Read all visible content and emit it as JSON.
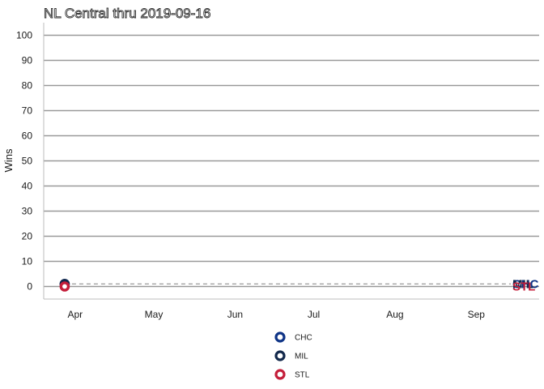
{
  "chart_data": {
    "type": "line",
    "title": "NL Central thru 2019-09-16",
    "xlabel": "",
    "ylabel": "Wins",
    "x_ticks": [
      "Apr",
      "May",
      "Jun",
      "Jul",
      "Aug",
      "Sep"
    ],
    "x_range": [
      "2019-03-20",
      "2019-09-25"
    ],
    "y_ticks": [
      0,
      10,
      20,
      30,
      40,
      50,
      60,
      70,
      80,
      90,
      100
    ],
    "ylim": [
      -5,
      105
    ],
    "grid": "horizontal",
    "legend_position": "bottom",
    "reference_line": 1,
    "series": [
      {
        "name": "CHC",
        "color": "#0E3386",
        "x": [
          "2019-03-28"
        ],
        "y": [
          1
        ],
        "end_label": "CHC",
        "end_value": 1
      },
      {
        "name": "MIL",
        "color": "#12284B",
        "x": [
          "2019-03-28"
        ],
        "y": [
          1
        ],
        "end_label": "MIL",
        "end_value": 1
      },
      {
        "name": "STL",
        "color": "#C41E3A",
        "x": [
          "2019-03-28"
        ],
        "y": [
          0
        ],
        "end_label": "STL",
        "end_value": 0
      }
    ]
  }
}
